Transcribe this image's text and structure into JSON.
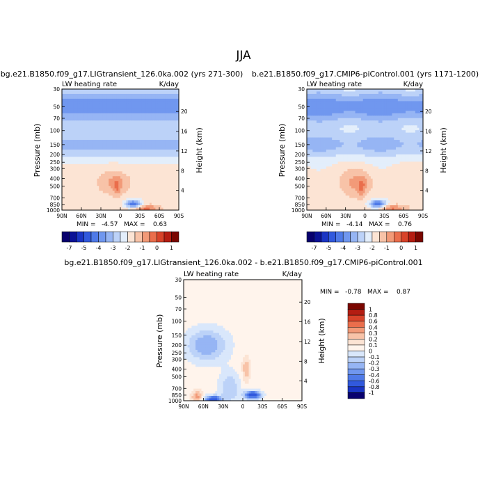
{
  "figure": {
    "title": "JJA"
  },
  "colors": {
    "axis": "#000000",
    "nan": "#ffffff"
  },
  "chart_data": [
    {
      "id": "left",
      "type": "heatmap",
      "title": "bg.e21.B1850.f09_g17.LIGtransient_126.0ka.002 (yrs 271-300)",
      "left_label": "LW heating rate",
      "right_label": "K/day",
      "xlabel": "",
      "ylabel": "Pressure (mb)",
      "y2label": "Height (km)",
      "x_ticks": [
        "90N",
        "60N",
        "30N",
        "0",
        "30S",
        "60S",
        "90S"
      ],
      "y_ticks": [
        "30",
        "50",
        "70",
        "100",
        "150",
        "200",
        "250",
        "300",
        "400",
        "500",
        "700",
        "850",
        "1000"
      ],
      "y2_ticks": [
        "20",
        "16",
        "12",
        "8",
        "4"
      ],
      "stats": "MIN =   -4.57   MAX =    0.63",
      "colorbar": {
        "levels": [
          "-7",
          "-5",
          "-4",
          "-3",
          "-2",
          "-1",
          "0",
          "1"
        ],
        "colors": [
          "#08006e",
          "#0b1296",
          "#1a35c4",
          "#3159dd",
          "#4f7ae8",
          "#7097ef",
          "#96b5f4",
          "#bcd2f8",
          "#e3eefb",
          "#fce4d4",
          "#f8c3a8",
          "#f29a78",
          "#ea6e4c",
          "#d8432a",
          "#b41d12",
          "#7a0600"
        ]
      }
    },
    {
      "id": "right",
      "type": "heatmap",
      "title": "b.e21.B1850.f09_g17.CMIP6-piControl.001 (yrs 1171-1200)",
      "left_label": "LW heating rate",
      "right_label": "K/day",
      "xlabel": "",
      "ylabel": "Pressure (mb)",
      "y2label": "Height (km)",
      "x_ticks": [
        "90N",
        "60N",
        "30N",
        "0",
        "30S",
        "60S",
        "90S"
      ],
      "y_ticks": [
        "30",
        "50",
        "70",
        "100",
        "150",
        "200",
        "250",
        "300",
        "400",
        "500",
        "700",
        "850",
        "1000"
      ],
      "y2_ticks": [
        "20",
        "16",
        "12",
        "8",
        "4"
      ],
      "stats": "MIN =   -4.14   MAX =    0.76",
      "colorbar": {
        "levels": [
          "-7",
          "-5",
          "-4",
          "-3",
          "-2",
          "-1",
          "0",
          "1"
        ],
        "colors": [
          "#08006e",
          "#0b1296",
          "#1a35c4",
          "#3159dd",
          "#4f7ae8",
          "#7097ef",
          "#96b5f4",
          "#bcd2f8",
          "#e3eefb",
          "#fce4d4",
          "#f8c3a8",
          "#f29a78",
          "#ea6e4c",
          "#d8432a",
          "#b41d12",
          "#7a0600"
        ]
      }
    },
    {
      "id": "diff",
      "type": "heatmap",
      "title": "bg.e21.B1850.f09_g17.LIGtransient_126.0ka.002 - b.e21.B1850.f09_g17.CMIP6-piControl.001",
      "left_label": "LW heating rate",
      "right_label": "K/day",
      "xlabel": "",
      "ylabel": "Pressure (mb)",
      "y2label": "Height (km)",
      "x_ticks": [
        "90N",
        "60N",
        "30N",
        "0",
        "30S",
        "60S",
        "90S"
      ],
      "y_ticks": [
        "30",
        "50",
        "70",
        "100",
        "150",
        "200",
        "250",
        "300",
        "400",
        "500",
        "700",
        "850",
        "1000"
      ],
      "y2_ticks": [
        "20",
        "16",
        "12",
        "8",
        "4"
      ],
      "stats": "MIN =   -0.78   MAX =    0.87",
      "colorbar": {
        "levels": [
          "1",
          "0.8",
          "0.6",
          "0.4",
          "0.3",
          "0.2",
          "0.1",
          "0",
          "-0.1",
          "-0.2",
          "-0.3",
          "-0.4",
          "-0.6",
          "-0.8",
          "-1"
        ],
        "colors": [
          "#7a0600",
          "#b41d12",
          "#d8432a",
          "#ea6e4c",
          "#f29a78",
          "#f8c3a8",
          "#fce4d4",
          "#fff4ec",
          "#d9e7fb",
          "#bcd2f8",
          "#96b5f4",
          "#7097ef",
          "#4f7ae8",
          "#3159dd",
          "#1a35c4",
          "#08006e"
        ]
      }
    }
  ]
}
